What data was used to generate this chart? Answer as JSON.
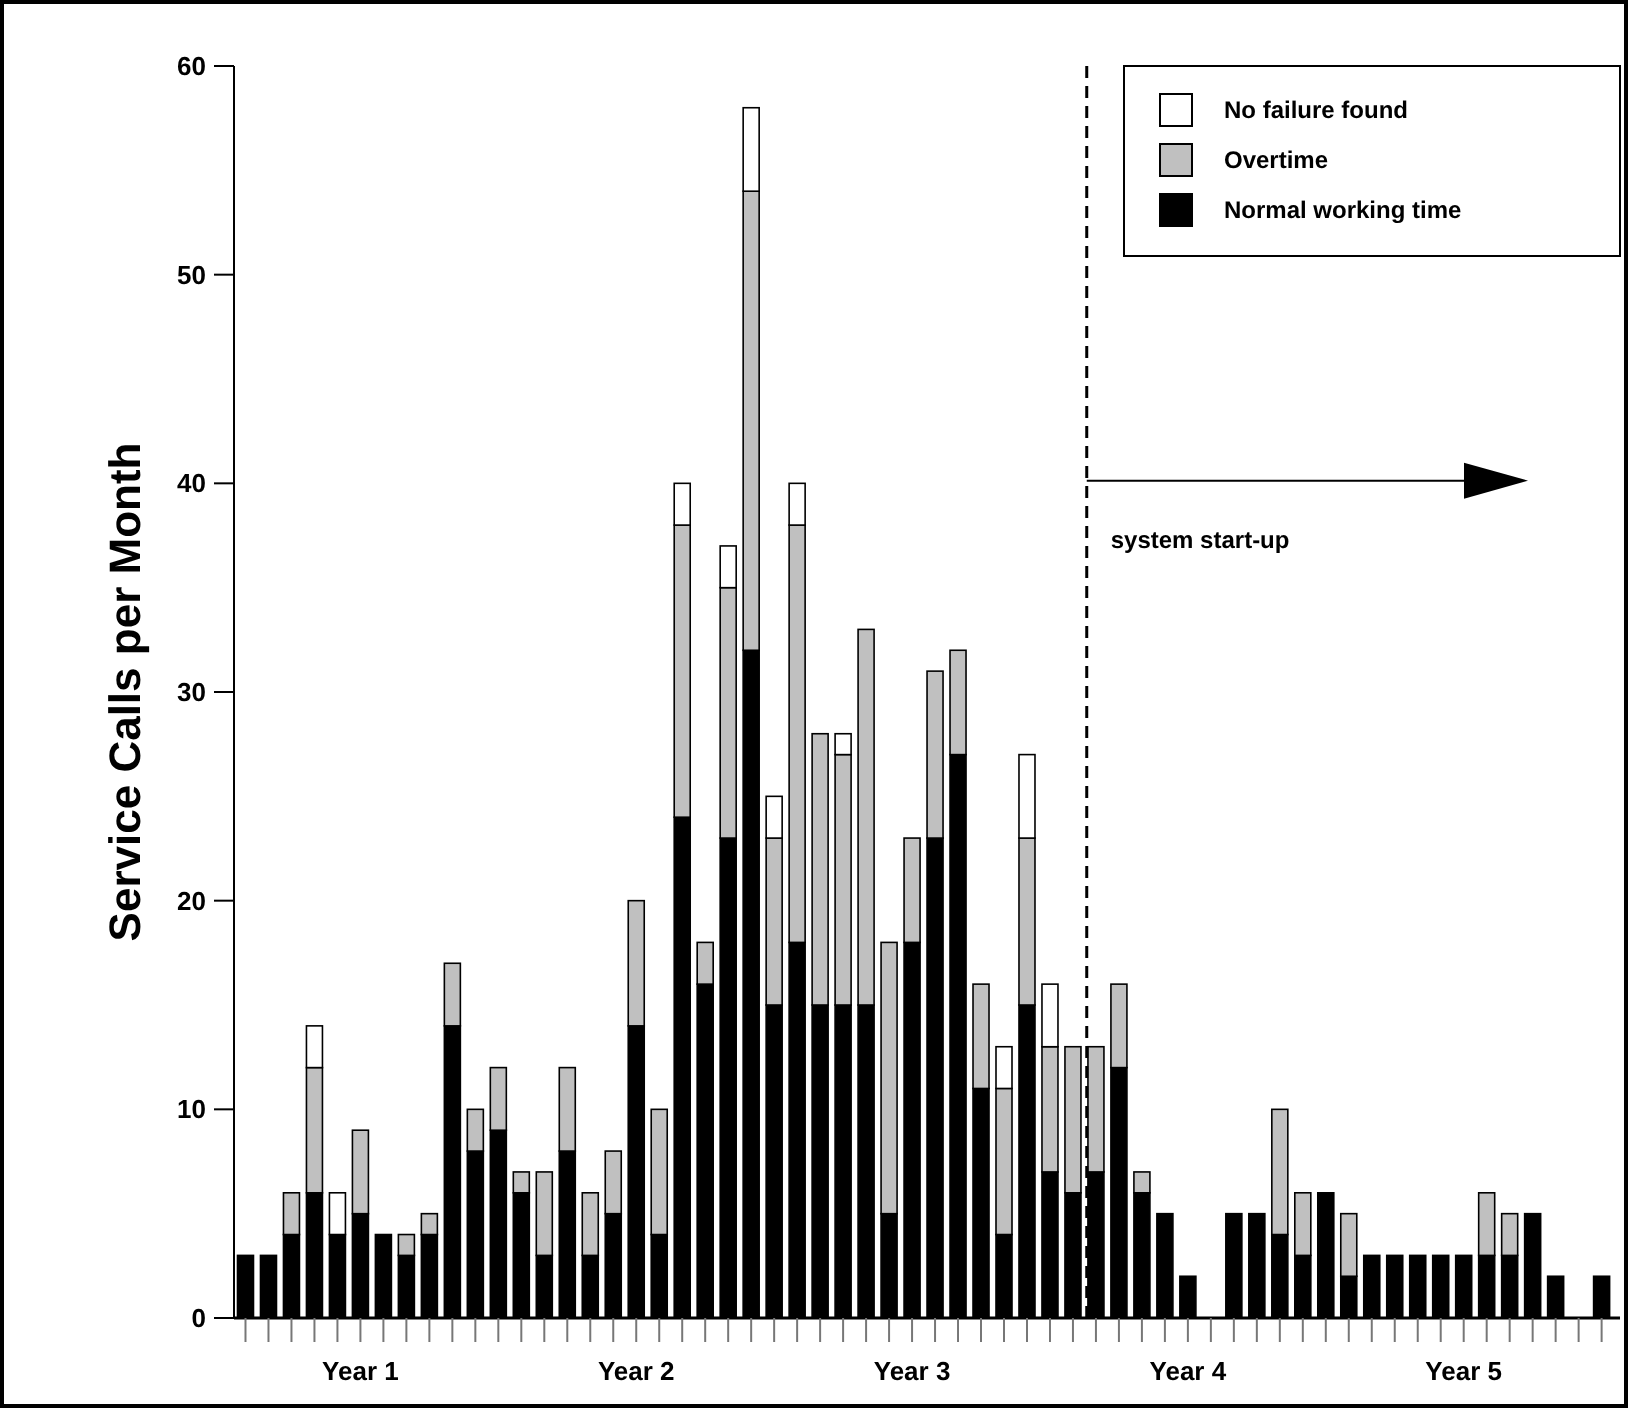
{
  "chart_data": {
    "type": "bar",
    "stacked": true,
    "ylabel": "Service Calls per Month",
    "categories": [
      null,
      null,
      null,
      null,
      null,
      "Year 1",
      null,
      null,
      null,
      null,
      null,
      null,
      null,
      null,
      null,
      null,
      null,
      "Year 2",
      null,
      null,
      null,
      null,
      null,
      null,
      null,
      null,
      null,
      null,
      null,
      "Year 3",
      null,
      null,
      null,
      null,
      null,
      null,
      null,
      null,
      null,
      null,
      null,
      "Year 4",
      null,
      null,
      null,
      null,
      null,
      null,
      null,
      null,
      null,
      null,
      null,
      "Year 5",
      null,
      null,
      null,
      null,
      null,
      null
    ],
    "series": [
      {
        "name": "Normal working time",
        "color": "#000000",
        "values": [
          3,
          3,
          4,
          6,
          4,
          5,
          4,
          3,
          4,
          14,
          8,
          9,
          6,
          3,
          8,
          3,
          5,
          14,
          4,
          24,
          16,
          23,
          32,
          15,
          18,
          15,
          15,
          15,
          5,
          18,
          23,
          27,
          11,
          4,
          15,
          7,
          6,
          7,
          12,
          6,
          5,
          2,
          0,
          5,
          5,
          4,
          3,
          6,
          2,
          3,
          3,
          3,
          3,
          3,
          3,
          3,
          5,
          2,
          0,
          2
        ]
      },
      {
        "name": "Overtime",
        "color": "#c0c0c0",
        "values": [
          0,
          0,
          2,
          6,
          0,
          4,
          0,
          1,
          1,
          3,
          2,
          3,
          1,
          4,
          4,
          3,
          3,
          6,
          6,
          14,
          2,
          12,
          22,
          8,
          20,
          13,
          12,
          18,
          13,
          5,
          8,
          5,
          5,
          7,
          8,
          6,
          7,
          6,
          4,
          1,
          0,
          0,
          0,
          0,
          0,
          6,
          3,
          0,
          3,
          0,
          0,
          0,
          0,
          0,
          3,
          2,
          0,
          0,
          0,
          0
        ]
      },
      {
        "name": "No failure found",
        "color": "#ffffff",
        "values": [
          0,
          0,
          0,
          2,
          2,
          0,
          0,
          0,
          0,
          0,
          0,
          0,
          0,
          0,
          0,
          0,
          0,
          0,
          0,
          2,
          0,
          2,
          4,
          2,
          2,
          0,
          1,
          0,
          0,
          0,
          0,
          0,
          0,
          2,
          4,
          3,
          0,
          0,
          0,
          0,
          0,
          0,
          0,
          0,
          0,
          0,
          0,
          0,
          0,
          0,
          0,
          0,
          0,
          0,
          0,
          0,
          0,
          0,
          0,
          0
        ]
      }
    ],
    "ylim": [
      0,
      60
    ],
    "yticks": [
      0,
      10,
      20,
      30,
      40,
      50,
      60
    ],
    "annotations": [
      "system start-up"
    ],
    "grid": false,
    "legend": "top right"
  }
}
